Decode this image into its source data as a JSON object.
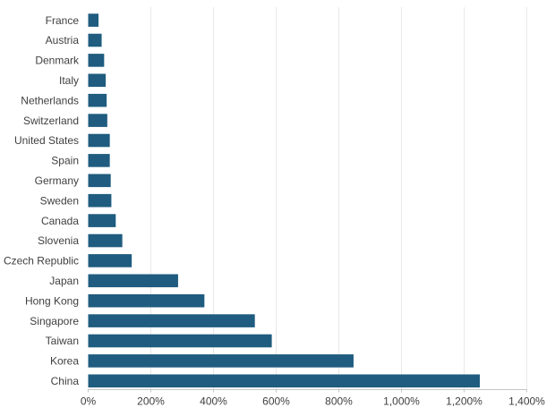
{
  "chart_data": {
    "type": "bar",
    "orientation": "horizontal",
    "title": "",
    "xlabel": "",
    "ylabel": "",
    "categories": [
      "France",
      "Austria",
      "Denmark",
      "Italy",
      "Netherlands",
      "Switzerland",
      "United States",
      "Spain",
      "Germany",
      "Sweden",
      "Canada",
      "Slovenia",
      "Czech Republic",
      "Japan",
      "Hong Kong",
      "Singapore",
      "Taiwan",
      "Korea",
      "China"
    ],
    "values": [
      33,
      43,
      51,
      56,
      59,
      61,
      69,
      69,
      72,
      74,
      88,
      109,
      139,
      287,
      371,
      532,
      586,
      847,
      1250
    ],
    "value_unit": "%",
    "xlim": [
      0,
      1400
    ],
    "xticks": [
      0,
      200,
      400,
      600,
      800,
      1000,
      1200,
      1400
    ],
    "xtick_labels": [
      "0%",
      "200%",
      "400%",
      "600%",
      "800%",
      "1,000%",
      "1,200%",
      "1,400%"
    ],
    "grid": "vertical",
    "legend": "none",
    "colors": {
      "bar": "#1f5c7f",
      "grid_line": "#e9e9e9",
      "axis_line": "#c6c6c6",
      "tick_mark": "#c6c6c6",
      "label_text": "#404040",
      "background": "#ffffff"
    }
  }
}
